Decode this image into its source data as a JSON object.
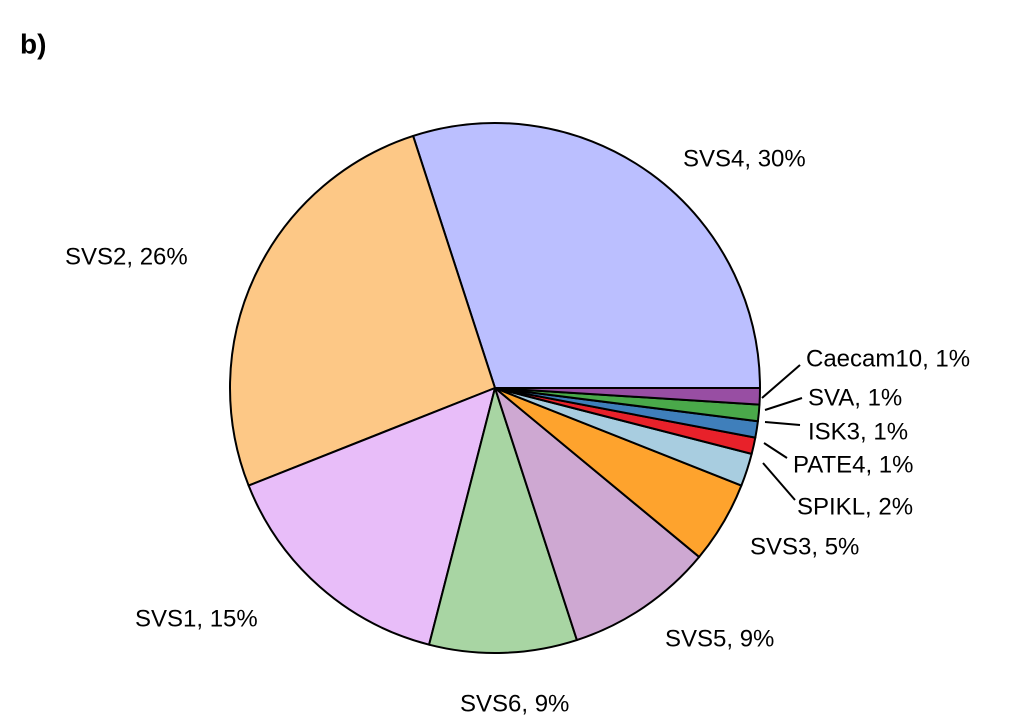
{
  "chart_data": {
    "type": "pie",
    "panel_label": "b)",
    "values": [
      30,
      26,
      15,
      9,
      9,
      5,
      2,
      1,
      1,
      1,
      1
    ],
    "value_labels": [
      "SVS4, 30%",
      "SVS2, 26%",
      "SVS1, 15%",
      "SVS6, 9%",
      "SVS5, 9%",
      "SVS3, 5%",
      "SPIKL, 2%",
      "PATE4, 1%",
      "ISK3, 1%",
      "SVA, 1%",
      "Caecam10, 1%"
    ],
    "colors": [
      "#bbbfff",
      "#fdc886",
      "#e8bdf9",
      "#a8d5a3",
      "#cea8d2",
      "#fea32d",
      "#a8cde0",
      "#e8212a",
      "#3f7fbb",
      "#4aa94a",
      "#984ea3"
    ]
  }
}
